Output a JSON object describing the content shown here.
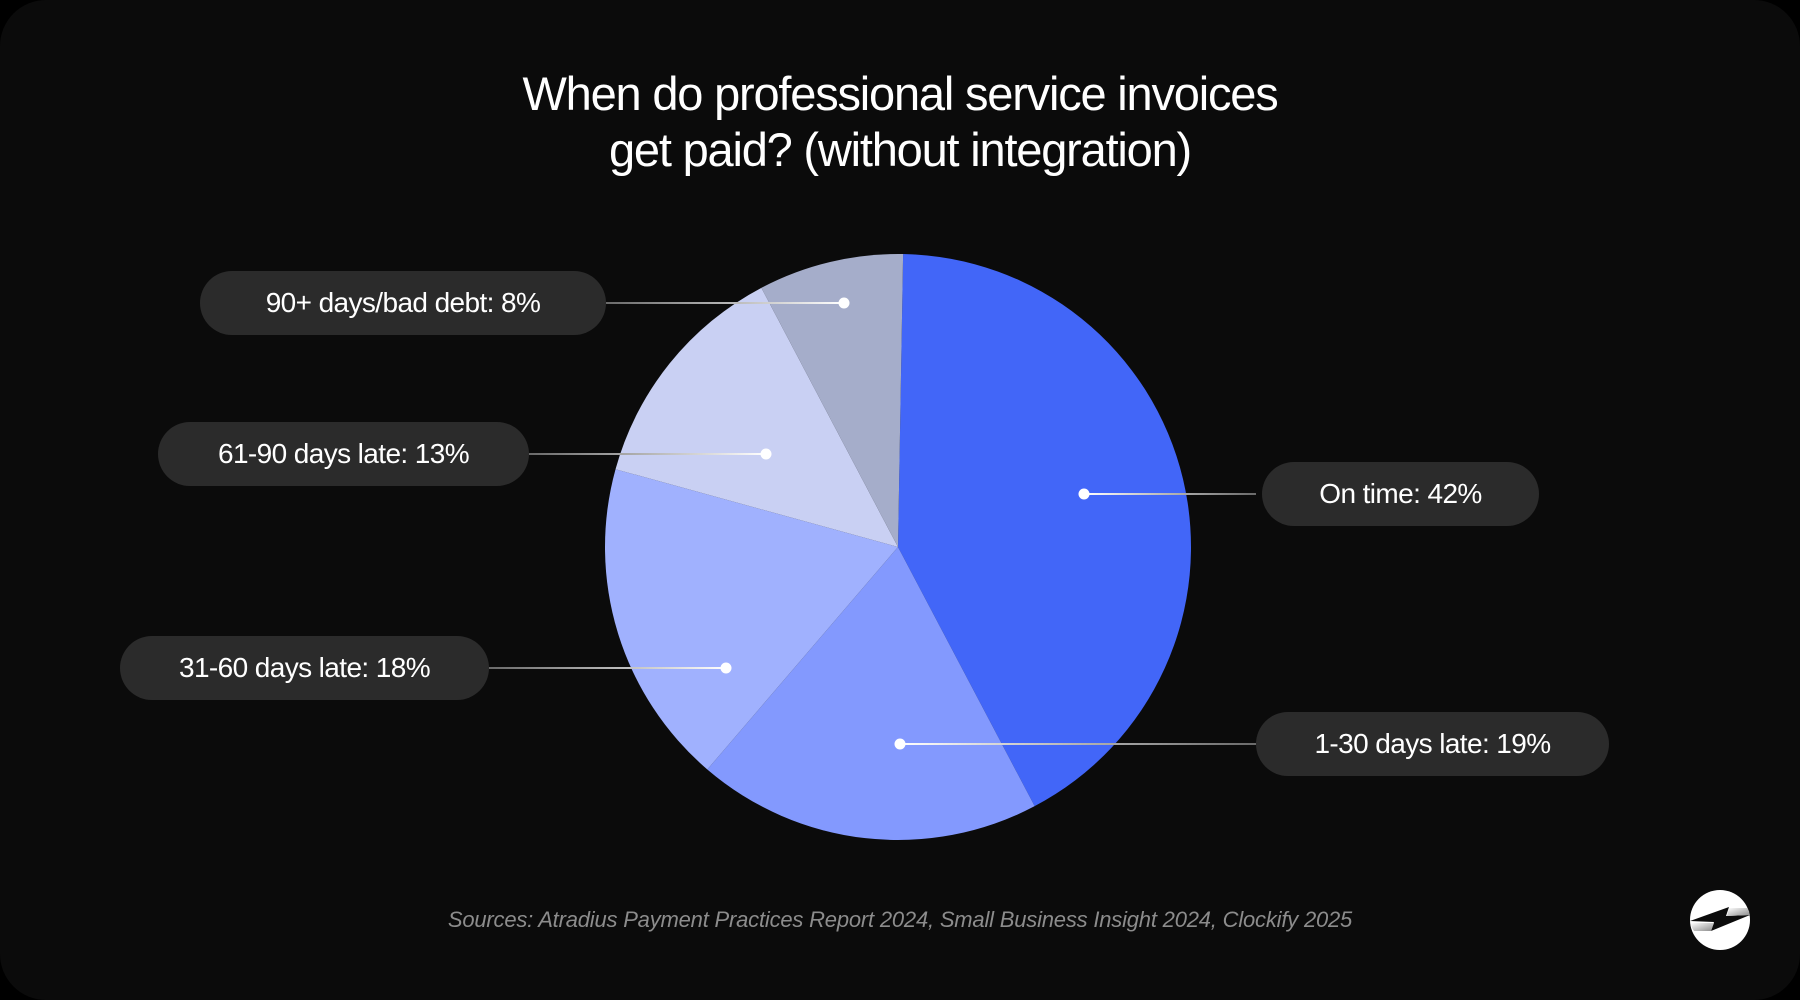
{
  "title": {
    "line1": "When do professional service invoices",
    "line2": "get paid? (without integration)"
  },
  "sources": "Sources: Atradius Payment Practices Report 2024, Small Business Insight 2024, Clockify 2025",
  "logo": {
    "icon": "clockify-logo-icon"
  },
  "colors": {
    "background": "#0b0b0b",
    "pill": "#2b2b2b",
    "on_time": "#4266f8",
    "days_1_30": "#8399fe",
    "days_31_60": "#a0b1fe",
    "days_61_90": "#c9d0f3",
    "days_90_plus": "#a5adca"
  },
  "labels": [
    {
      "text": "On time: 42%"
    },
    {
      "text": "1-30 days late: 19%"
    },
    {
      "text": "31-60 days late: 18%"
    },
    {
      "text": "61-90 days late: 13%"
    },
    {
      "text": "90+ days/bad debt: 8%"
    }
  ],
  "chart_data": {
    "type": "pie",
    "title": "When do professional service invoices get paid? (without integration)",
    "categories": [
      "On time",
      "1-30 days late",
      "31-60 days late",
      "61-90 days late",
      "90+ days/bad debt"
    ],
    "values": [
      42,
      19,
      18,
      13,
      8
    ],
    "unit": "%",
    "colors": [
      "#4266f8",
      "#8399fe",
      "#a0b1fe",
      "#c9d0f3",
      "#a5adca"
    ],
    "start_angle_deg": 1,
    "direction": "clockwise",
    "legend": "callout labels with leader lines",
    "annotations": [
      "Sources: Atradius Payment Practices Report 2024, Small Business Insight 2024, Clockify 2025"
    ]
  }
}
